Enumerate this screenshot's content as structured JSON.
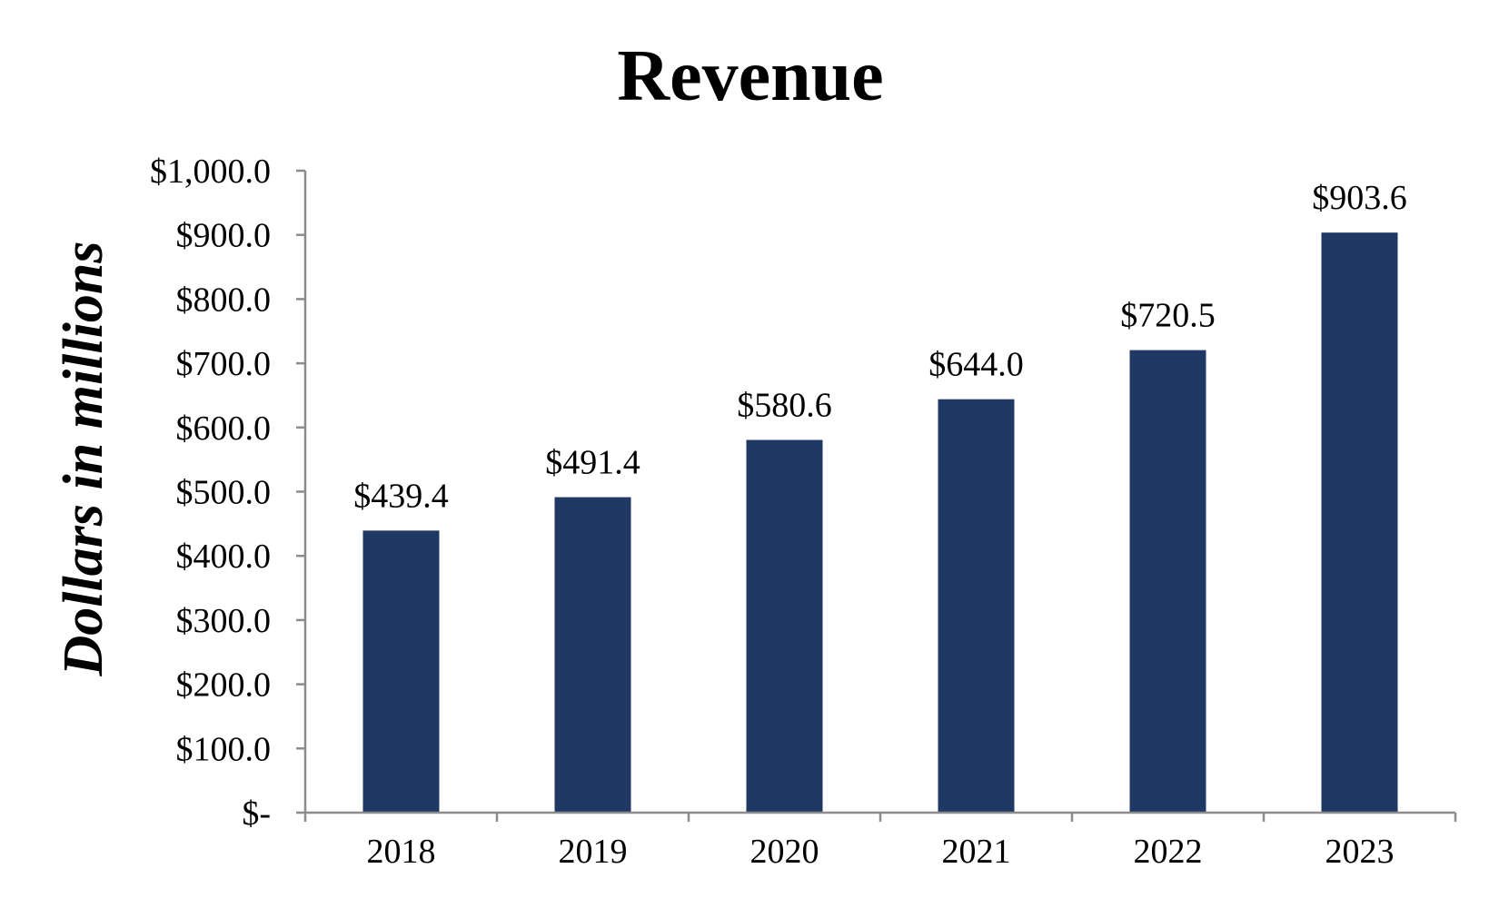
{
  "chart_data": {
    "type": "bar",
    "title": "Revenue",
    "xlabel": "",
    "ylabel": "Dollars in millions",
    "categories": [
      "2018",
      "2019",
      "2020",
      "2021",
      "2022",
      "2023"
    ],
    "values": [
      439.4,
      491.4,
      580.6,
      644.0,
      720.5,
      903.6
    ],
    "data_labels": [
      "$439.4",
      "$491.4",
      "$580.6",
      "$644.0",
      "$720.5",
      "$903.6"
    ],
    "ylim": [
      0,
      1000
    ],
    "yticks": [
      0,
      100,
      200,
      300,
      400,
      500,
      600,
      700,
      800,
      900,
      1000
    ],
    "ytick_labels": [
      "$-",
      "$100.0",
      "$200.0",
      "$300.0",
      "$400.0",
      "$500.0",
      "$600.0",
      "$700.0",
      "$800.0",
      "$900.0",
      "$1,000.0"
    ],
    "grid": false,
    "legend": "none",
    "bar_color": "#203864"
  }
}
